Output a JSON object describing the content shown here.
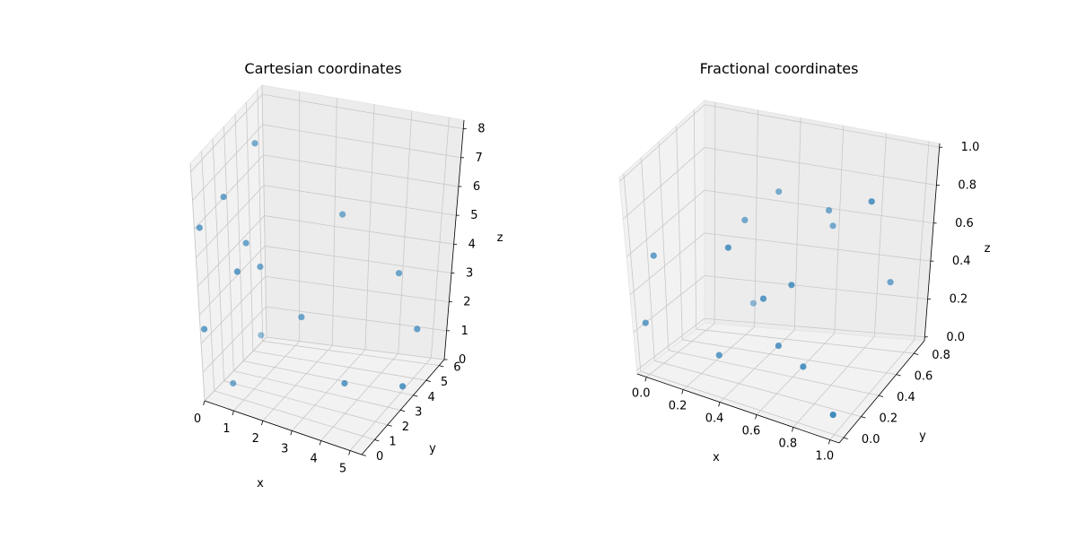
{
  "chart_data": [
    {
      "type": "scatter",
      "projection": "3d",
      "title": "Cartesian coordinates",
      "xlabel": "x",
      "ylabel": "y",
      "zlabel": "z",
      "xlim": [
        0,
        5.4
      ],
      "ylim": [
        0,
        6.4
      ],
      "zlim": [
        0,
        8.3
      ],
      "xticks": [
        "0",
        "1",
        "2",
        "3",
        "4",
        "5"
      ],
      "yticks": [
        "0",
        "1",
        "2",
        "3",
        "4",
        "5",
        "6"
      ],
      "zticks": [
        "0",
        "1",
        "2",
        "3",
        "4",
        "5",
        "6",
        "7",
        "8"
      ],
      "grid": true,
      "point_color": "#1f77b4",
      "points": [
        {
          "x": 0.9,
          "y": 3.0,
          "z": 8.0
        },
        {
          "x": 0.4,
          "y": 1.6,
          "z": 6.6
        },
        {
          "x": 2.6,
          "y": 5.3,
          "z": 5.0
        },
        {
          "x": 2.0,
          "y": 3.6,
          "z": 2.1
        },
        {
          "x": 0.1,
          "y": 0.2,
          "z": 6.0
        },
        {
          "x": 0.9,
          "y": 2.0,
          "z": 5.0
        },
        {
          "x": 1.1,
          "y": 2.6,
          "z": 4.0
        },
        {
          "x": 4.0,
          "y": 6.1,
          "z": 2.9
        },
        {
          "x": 4.7,
          "y": 5.9,
          "z": 1.2
        },
        {
          "x": 0.1,
          "y": 0.1,
          "z": 2.5
        },
        {
          "x": 1.0,
          "y": 0.9,
          "z": 4.5
        },
        {
          "x": 3.4,
          "y": 3.5,
          "z": 0.2
        },
        {
          "x": 4.9,
          "y": 4.4,
          "z": 0.0
        },
        {
          "x": 0.2,
          "y": 5.2,
          "z": 0.5
        },
        {
          "x": 0.3,
          "y": 2.0,
          "z": 0.0
        }
      ]
    },
    {
      "type": "scatter",
      "projection": "3d",
      "title": "Fractional coordinates",
      "xlabel": "x",
      "ylabel": "y",
      "zlabel": "z",
      "xlim": [
        -0.05,
        1.05
      ],
      "ylim": [
        -0.05,
        0.92
      ],
      "zlim": [
        -0.02,
        1.02
      ],
      "xticks": [
        "0.0",
        "0.2",
        "0.4",
        "0.6",
        "0.8",
        "1.0"
      ],
      "yticks": [
        "0.0",
        "0.2",
        "0.4",
        "0.6",
        "0.8"
      ],
      "zticks": [
        "0.0",
        "0.2",
        "0.4",
        "0.6",
        "0.8",
        "1.0"
      ],
      "grid": true,
      "point_color": "#1f77b4",
      "points": [
        {
          "x": 0.9,
          "y": 0.6,
          "z": 0.85
        },
        {
          "x": 0.4,
          "y": 0.15,
          "z": 0.7
        },
        {
          "x": 0.6,
          "y": 0.85,
          "z": 0.55
        },
        {
          "x": 0.6,
          "y": 0.8,
          "z": 0.65
        },
        {
          "x": 0.05,
          "y": 0.05,
          "z": 0.6
        },
        {
          "x": 0.0,
          "y": 0.0,
          "z": 0.25
        },
        {
          "x": 0.3,
          "y": 0.55,
          "z": 0.65
        },
        {
          "x": 0.6,
          "y": 0.4,
          "z": 0.45
        },
        {
          "x": 0.85,
          "y": 0.95,
          "z": 0.25
        },
        {
          "x": 0.3,
          "y": 0.2,
          "z": 0.1
        },
        {
          "x": 0.5,
          "y": 0.3,
          "z": 0.4
        },
        {
          "x": 0.4,
          "y": 0.7,
          "z": 0.75
        },
        {
          "x": 0.7,
          "y": 0.3,
          "z": 0.1
        },
        {
          "x": 0.9,
          "y": 0.2,
          "z": -0.05
        },
        {
          "x": 0.2,
          "y": 0.9,
          "z": 0.1
        },
        {
          "x": 0.55,
          "y": 0.35,
          "z": 0.15
        }
      ]
    }
  ]
}
